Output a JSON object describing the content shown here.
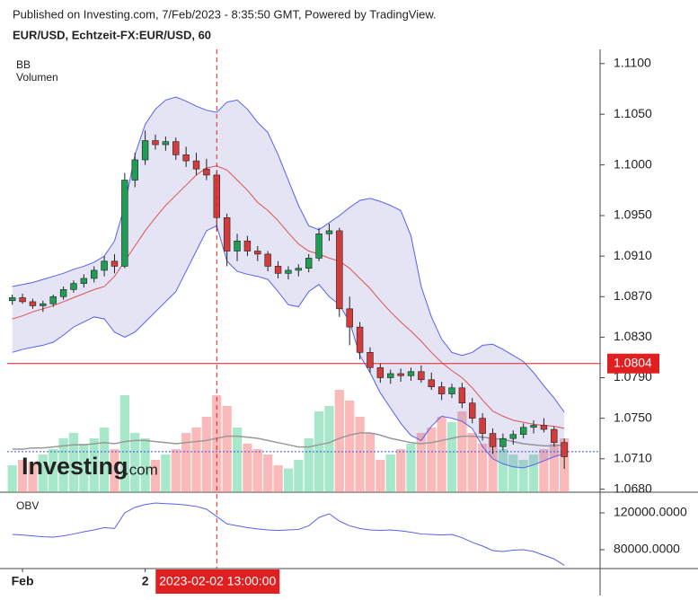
{
  "chart_data": {
    "type": "candlestick",
    "title": "Published on Investing.com, 7/Feb/2023 - 8:35:50 GMT, Powered by TradingView.",
    "subtitle": "EUR/USD, Echtzeit-FX:EUR/USD, 60",
    "logo": [
      "Investing",
      ".com"
    ],
    "categories": [
      null,
      "Feb",
      null,
      null,
      null,
      null,
      null,
      null,
      null,
      null,
      null,
      null,
      null,
      "2",
      null,
      null,
      null,
      null,
      null,
      null,
      null,
      null,
      null,
      null,
      null,
      null,
      null,
      null,
      null,
      null,
      null,
      null,
      null,
      null,
      null,
      null,
      null,
      null,
      null,
      null,
      null,
      null,
      null,
      null,
      null,
      null,
      null,
      null,
      null,
      null,
      null,
      null,
      null,
      null,
      null
    ],
    "ohlc": [
      [
        1.0866,
        1.0872,
        1.0862,
        1.0869
      ],
      [
        1.0869,
        1.0873,
        1.0863,
        1.0865
      ],
      [
        1.0865,
        1.0868,
        1.0858,
        1.0861
      ],
      [
        1.0861,
        1.0866,
        1.0855,
        1.0863
      ],
      [
        1.0863,
        1.0872,
        1.086,
        1.087
      ],
      [
        1.087,
        1.088,
        1.0867,
        1.0877
      ],
      [
        1.0877,
        1.0886,
        1.0874,
        1.0883
      ],
      [
        1.0883,
        1.0892,
        1.0879,
        1.0888
      ],
      [
        1.0888,
        1.09,
        1.0884,
        1.0896
      ],
      [
        1.0896,
        1.091,
        1.089,
        1.0905
      ],
      [
        1.0905,
        1.0912,
        1.0893,
        1.09
      ],
      [
        1.09,
        1.0992,
        1.0898,
        1.0985
      ],
      [
        1.0985,
        1.1012,
        1.0978,
        1.1005
      ],
      [
        1.1005,
        1.1034,
        1.1,
        1.1024
      ],
      [
        1.1024,
        1.103,
        1.1015,
        1.102
      ],
      [
        1.102,
        1.1028,
        1.1014,
        1.1023
      ],
      [
        1.1023,
        1.1027,
        1.1005,
        1.101
      ],
      [
        1.101,
        1.1018,
        1.0998,
        1.1004
      ],
      [
        1.1004,
        1.1012,
        1.099,
        1.0996
      ],
      [
        1.0996,
        1.1006,
        1.0985,
        1.099
      ],
      [
        1.099,
        1.0995,
        1.0935,
        1.0948
      ],
      [
        1.0948,
        1.0952,
        1.09,
        1.0915
      ],
      [
        1.0915,
        1.0932,
        1.0905,
        1.0925
      ],
      [
        1.0925,
        1.093,
        1.091,
        1.0915
      ],
      [
        1.0915,
        1.092,
        1.0905,
        1.0912
      ],
      [
        1.0912,
        1.0915,
        1.0895,
        1.09
      ],
      [
        1.09,
        1.0905,
        1.0888,
        1.0893
      ],
      [
        1.0893,
        1.09,
        1.0887,
        1.0896
      ],
      [
        1.0896,
        1.0902,
        1.089,
        1.0898
      ],
      [
        1.0898,
        1.0912,
        1.0894,
        1.0908
      ],
      [
        1.0908,
        1.0938,
        1.0905,
        1.0932
      ],
      [
        1.0932,
        1.0942,
        1.0925,
        1.0935
      ],
      [
        1.0935,
        1.0938,
        1.085,
        1.0858
      ],
      [
        1.0858,
        1.087,
        1.0822,
        1.084
      ],
      [
        1.084,
        1.0845,
        1.0808,
        1.0815
      ],
      [
        1.0815,
        1.082,
        1.0795,
        1.08
      ],
      [
        1.08,
        1.0804,
        1.0785,
        1.079
      ],
      [
        1.079,
        1.0798,
        1.0784,
        1.0794
      ],
      [
        1.0794,
        1.0799,
        1.0786,
        1.0792
      ],
      [
        1.0792,
        1.08,
        1.0787,
        1.0796
      ],
      [
        1.0796,
        1.0802,
        1.0785,
        1.0788
      ],
      [
        1.0788,
        1.0795,
        1.0778,
        1.0781
      ],
      [
        1.0781,
        1.0786,
        1.0768,
        1.0774
      ],
      [
        1.0774,
        1.0784,
        1.077,
        1.078
      ],
      [
        1.078,
        1.0785,
        1.076,
        1.0765
      ],
      [
        1.0765,
        1.077,
        1.0745,
        1.075
      ],
      [
        1.075,
        1.0755,
        1.0728,
        1.0735
      ],
      [
        1.0735,
        1.074,
        1.0715,
        1.0722
      ],
      [
        1.0722,
        1.0735,
        1.0718,
        1.073
      ],
      [
        1.073,
        1.0738,
        1.0724,
        1.0734
      ],
      [
        1.0734,
        1.0745,
        1.073,
        1.0741
      ],
      [
        1.0741,
        1.0748,
        1.0735,
        1.0743
      ],
      [
        1.0743,
        1.075,
        1.0736,
        1.0739
      ],
      [
        1.0739,
        1.0742,
        1.0722,
        1.0726
      ],
      [
        1.0726,
        1.073,
        1.07,
        1.0712
      ]
    ],
    "up_color": "#1f9d55",
    "down_color": "#d23c3c",
    "ylim": [
      1.0677,
      1.1114
    ],
    "yticks": [
      {
        "value": 1.11,
        "label": "1.1100"
      },
      {
        "value": 1.105,
        "label": "1.1050"
      },
      {
        "value": 1.1,
        "label": "1.1000"
      },
      {
        "value": 1.095,
        "label": "1.0950"
      },
      {
        "value": 1.091,
        "label": "1.0910"
      },
      {
        "value": 1.087,
        "label": "1.0870"
      },
      {
        "value": 1.083,
        "label": "1.0830"
      },
      {
        "value": 1.079,
        "label": "1.0790"
      },
      {
        "value": 1.075,
        "label": "1.0750"
      },
      {
        "value": 1.071,
        "label": "1.0710"
      },
      {
        "value": 1.068,
        "label": "1.0680"
      }
    ],
    "hline": {
      "value": 1.0804,
      "color": "#e02020"
    },
    "last_price_line": {
      "value": 1.0717,
      "color": "#3050e0"
    },
    "crosshair": {
      "category": 20,
      "label": "2023-02-02 13:00:00",
      "color": "#e02020"
    },
    "bb": {
      "name": "BB",
      "line_color": "#5560f0",
      "mid_color": "#e05050",
      "fill": "rgba(120,120,200,0.2)",
      "upper": [
        1.088,
        1.0882,
        1.0884,
        1.0887,
        1.089,
        1.0893,
        1.0897,
        1.09,
        1.0904,
        1.091,
        1.0925,
        1.096,
        1.101,
        1.104,
        1.1055,
        1.1064,
        1.1067,
        1.1063,
        1.1058,
        1.1054,
        1.1052,
        1.1062,
        1.1064,
        1.1055,
        1.1042,
        1.1032,
        1.101,
        1.0985,
        1.096,
        1.094,
        1.0936,
        1.0943,
        1.095,
        1.0958,
        1.0965,
        1.0967,
        1.0964,
        1.096,
        1.0955,
        1.093,
        1.088,
        1.085,
        1.0828,
        1.0815,
        1.0812,
        1.0815,
        1.0822,
        1.0823,
        1.0818,
        1.0812,
        1.0806,
        1.0795,
        1.0782,
        1.077,
        1.0756
      ],
      "middle": [
        1.0848,
        1.0851,
        1.0855,
        1.0858,
        1.0861,
        1.0865,
        1.0869,
        1.0873,
        1.0877,
        1.088,
        1.089,
        1.0905,
        1.092,
        1.0935,
        1.0948,
        1.096,
        1.097,
        1.098,
        1.099,
        1.0997,
        1.0999,
        1.0995,
        1.0985,
        1.0975,
        1.0963,
        1.0955,
        1.0945,
        1.0933,
        1.0922,
        1.0915,
        1.0912,
        1.0908,
        1.0905,
        1.0898,
        1.0888,
        1.0878,
        1.0866,
        1.0855,
        1.0845,
        1.0836,
        1.0826,
        1.0815,
        1.0805,
        1.0797,
        1.079,
        1.078,
        1.0768,
        1.0757,
        1.0752,
        1.0748,
        1.0746,
        1.0744,
        1.0743,
        1.0742,
        1.074
      ],
      "lower": [
        1.0815,
        1.0818,
        1.082,
        1.0822,
        1.0825,
        1.0832,
        1.084,
        1.0845,
        1.085,
        1.0848,
        1.0835,
        1.083,
        1.0835,
        1.0845,
        1.0855,
        1.0865,
        1.0875,
        1.0895,
        1.0915,
        1.0935,
        1.094,
        1.0905,
        1.0895,
        1.0892,
        1.089,
        1.0887,
        1.0875,
        1.0862,
        1.086,
        1.0875,
        1.0882,
        1.087,
        1.0862,
        1.0845,
        1.0812,
        1.0795,
        1.0775,
        1.076,
        1.0745,
        1.0733,
        1.0728,
        1.0742,
        1.0752,
        1.075,
        1.0747,
        1.074,
        1.0722,
        1.071,
        1.0705,
        1.0702,
        1.0701,
        1.0704,
        1.0708,
        1.0712,
        1.0715
      ]
    },
    "volume": {
      "name": "Volumen",
      "up_color": "rgba(80,210,150,0.5)",
      "down_color": "rgba(245,130,130,0.55)",
      "ma_color": "#999999",
      "values": [
        25,
        30,
        28,
        35,
        40,
        50,
        55,
        45,
        50,
        60,
        40,
        90,
        55,
        50,
        30,
        35,
        40,
        55,
        60,
        70,
        90,
        80,
        60,
        45,
        40,
        35,
        25,
        22,
        30,
        50,
        75,
        80,
        95,
        85,
        70,
        55,
        30,
        35,
        40,
        45,
        55,
        60,
        70,
        65,
        75,
        55,
        45,
        50,
        40,
        35,
        30,
        35,
        40,
        45,
        50
      ],
      "ma": [
        40,
        40,
        41,
        41,
        42,
        43,
        44,
        44,
        45,
        46,
        45,
        47,
        48,
        48,
        47,
        46,
        45,
        46,
        47,
        48,
        50,
        52,
        52,
        51,
        50,
        48,
        46,
        44,
        42,
        42,
        44,
        46,
        50,
        53,
        55,
        55,
        53,
        50,
        48,
        46,
        45,
        46,
        48,
        50,
        52,
        52,
        51,
        50,
        49,
        47,
        45,
        44,
        43,
        43,
        44
      ]
    },
    "obv": {
      "name": "OBV",
      "color": "#5560f0",
      "ylim": [
        59500,
        139500
      ],
      "yticks": [
        {
          "value": 120000,
          "label": "120000.0000"
        },
        {
          "value": 80000,
          "label": "80000.0000"
        }
      ],
      "values": [
        96600,
        96000,
        95000,
        94000,
        93700,
        95000,
        97000,
        99500,
        101500,
        104000,
        103000,
        120000,
        126000,
        129000,
        130700,
        130000,
        129500,
        128500,
        127000,
        124000,
        116000,
        108000,
        106000,
        104000,
        102500,
        101500,
        101000,
        101500,
        102000,
        106000,
        115000,
        119000,
        111000,
        106000,
        103000,
        101500,
        101000,
        101500,
        100500,
        99000,
        97000,
        96600,
        96000,
        96600,
        93000,
        88000,
        84000,
        79000,
        78000,
        79500,
        80000,
        78000,
        74000,
        70000,
        63000
      ]
    }
  }
}
